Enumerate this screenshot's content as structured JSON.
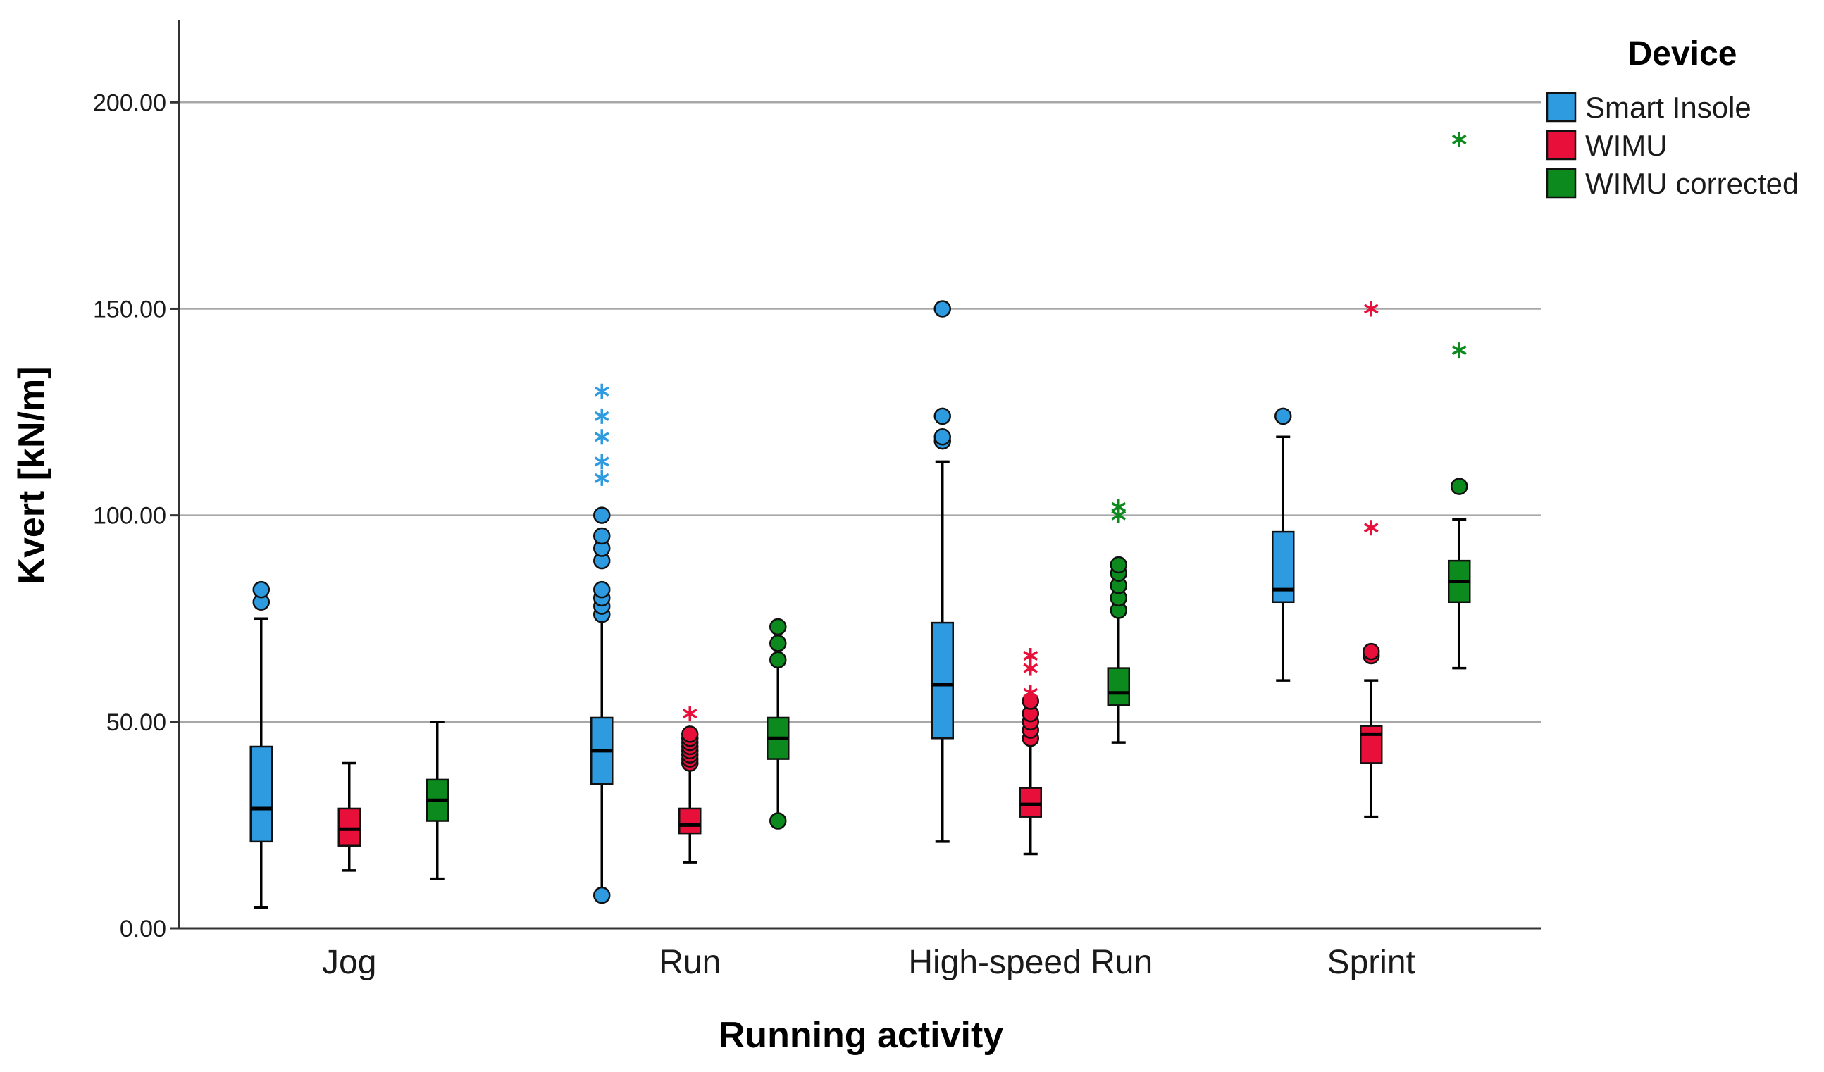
{
  "chart_data": {
    "type": "boxplot",
    "title": "",
    "xlabel": "Running activity",
    "ylabel": "Kvert [kN/m]",
    "ylim": [
      0,
      220
    ],
    "yticks": [
      0,
      50,
      100,
      150,
      200
    ],
    "ytick_labels": [
      "0.00",
      "50.00",
      "100.00",
      "150.00",
      "200.00"
    ],
    "grid": "horizontal",
    "categories": [
      "Jog",
      "Run",
      "High-speed Run",
      "Sprint"
    ],
    "legend": {
      "title": "Device",
      "position": "top-right",
      "entries": [
        {
          "name": "Smart Insole",
          "color": "#2E9AE0"
        },
        {
          "name": "WIMU",
          "color": "#E8103A"
        },
        {
          "name": "WIMU corrected",
          "color": "#0C8A1E"
        }
      ]
    },
    "series": [
      {
        "name": "Smart Insole",
        "color": "#2E9AE0",
        "boxes": [
          {
            "category": "Jog",
            "min": 5,
            "q1": 21,
            "median": 29,
            "q3": 44,
            "max": 75,
            "outliers": [
              79,
              82
            ],
            "extremes": []
          },
          {
            "category": "Run",
            "min": 8,
            "q1": 35,
            "median": 43,
            "q3": 51,
            "max": 76,
            "outliers": [
              8,
              76,
              78,
              80,
              82,
              89,
              92,
              95,
              100
            ],
            "extremes": [
              109,
              113,
              119,
              124,
              130
            ]
          },
          {
            "category": "High-speed Run",
            "min": 21,
            "q1": 46,
            "median": 59,
            "q3": 74,
            "max": 113,
            "outliers": [
              118,
              119,
              124,
              150
            ],
            "extremes": []
          },
          {
            "category": "Sprint",
            "min": 60,
            "q1": 79,
            "median": 82,
            "q3": 96,
            "max": 119,
            "outliers": [
              124
            ],
            "extremes": []
          }
        ]
      },
      {
        "name": "WIMU",
        "color": "#E8103A",
        "boxes": [
          {
            "category": "Jog",
            "min": 14,
            "q1": 20,
            "median": 24,
            "q3": 29,
            "max": 40,
            "outliers": [],
            "extremes": []
          },
          {
            "category": "Run",
            "min": 16,
            "q1": 23,
            "median": 25,
            "q3": 29,
            "max": 39,
            "outliers": [
              40,
              41,
              42,
              43,
              44,
              45,
              46,
              47
            ],
            "extremes": [
              52
            ]
          },
          {
            "category": "High-speed Run",
            "min": 18,
            "q1": 27,
            "median": 30,
            "q3": 34,
            "max": 45,
            "outliers": [
              46,
              48,
              50,
              52,
              55
            ],
            "extremes": [
              57,
              63,
              66
            ]
          },
          {
            "category": "Sprint",
            "min": 27,
            "q1": 40,
            "median": 47,
            "q3": 49,
            "max": 60,
            "outliers": [
              66,
              67
            ],
            "extremes": [
              97,
              150
            ]
          }
        ]
      },
      {
        "name": "WIMU corrected",
        "color": "#0C8A1E",
        "boxes": [
          {
            "category": "Jog",
            "min": 12,
            "q1": 26,
            "median": 31,
            "q3": 36,
            "max": 50,
            "outliers": [],
            "extremes": []
          },
          {
            "category": "Run",
            "min": 26,
            "q1": 41,
            "median": 46,
            "q3": 51,
            "max": 64,
            "outliers": [
              26,
              65,
              69,
              73
            ],
            "extremes": []
          },
          {
            "category": "High-speed Run",
            "min": 45,
            "q1": 54,
            "median": 57,
            "q3": 63,
            "max": 76,
            "outliers": [
              77,
              80,
              83,
              86,
              88
            ],
            "extremes": [
              100,
              102
            ]
          },
          {
            "category": "Sprint",
            "min": 63,
            "q1": 79,
            "median": 84,
            "q3": 89,
            "max": 99,
            "outliers": [
              107
            ],
            "extremes": [
              140,
              191
            ]
          }
        ]
      }
    ]
  }
}
